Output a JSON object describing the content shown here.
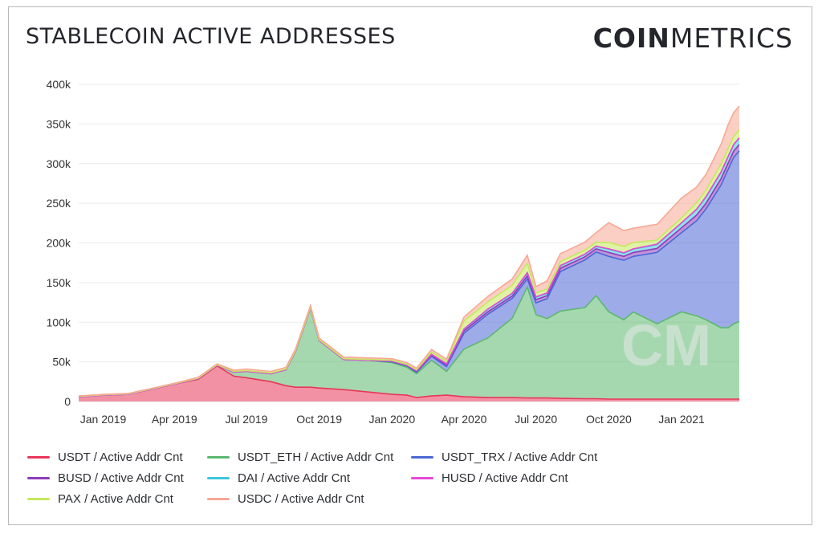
{
  "header": {
    "title": "STABLECOIN ACTIVE ADDRESSES",
    "logo_bold": "COIN",
    "logo_light": "METRICS"
  },
  "chart_data": {
    "type": "area",
    "stacked": true,
    "title": "STABLECOIN ACTIVE ADDRESSES",
    "xlabel": "",
    "ylabel": "",
    "ylim": [
      0,
      400000
    ],
    "yticks": [
      0,
      50000,
      100000,
      150000,
      200000,
      250000,
      300000,
      350000,
      400000
    ],
    "ytick_labels": [
      "0",
      "50k",
      "100k",
      "150k",
      "200k",
      "250k",
      "300k",
      "350k",
      "400k"
    ],
    "xticks": [
      "2019-01-01",
      "2019-04-01",
      "2019-07-01",
      "2019-10-01",
      "2020-01-01",
      "2020-04-01",
      "2020-07-01",
      "2020-10-01",
      "2021-01-01"
    ],
    "xtick_labels": [
      "Jan 2019",
      "Apr 2019",
      "Jul 2019",
      "Oct 2019",
      "Jan 2020",
      "Apr 2020",
      "Jul 2020",
      "Oct 2020",
      "Jan 2021"
    ],
    "xlim": [
      "2018-12-01",
      "2021-03-15"
    ],
    "grid": true,
    "legend_position": "bottom",
    "x": [
      "2018-12-01",
      "2019-01-01",
      "2019-02-01",
      "2019-03-01",
      "2019-04-01",
      "2019-05-01",
      "2019-05-25",
      "2019-06-15",
      "2019-07-01",
      "2019-08-01",
      "2019-08-20",
      "2019-09-01",
      "2019-09-20",
      "2019-10-01",
      "2019-11-01",
      "2019-12-01",
      "2020-01-01",
      "2020-01-20",
      "2020-02-01",
      "2020-02-20",
      "2020-03-10",
      "2020-04-01",
      "2020-05-01",
      "2020-06-01",
      "2020-06-20",
      "2020-07-01",
      "2020-07-15",
      "2020-08-01",
      "2020-09-01",
      "2020-09-15",
      "2020-10-01",
      "2020-10-20",
      "2020-11-01",
      "2020-12-01",
      "2021-01-01",
      "2021-01-20",
      "2021-02-01",
      "2021-02-20",
      "2021-03-01",
      "2021-03-08",
      "2021-03-15"
    ],
    "series": [
      {
        "name": "USDT / Active Addr Cnt",
        "color": "#e8365a",
        "values": [
          6000,
          8000,
          9000,
          15000,
          22000,
          28000,
          45000,
          32000,
          30000,
          25000,
          20000,
          18000,
          18000,
          17000,
          15000,
          12000,
          9000,
          8000,
          5000,
          7000,
          8000,
          6000,
          5000,
          5000,
          4500,
          4500,
          4500,
          4000,
          3500,
          3500,
          3000,
          3000,
          3000,
          3000,
          3000,
          3000,
          3000,
          3000,
          3000,
          3000,
          3000
        ]
      },
      {
        "name": "USDT_ETH / Active Addr Cnt",
        "color": "#5cb86e",
        "values": [
          0,
          0,
          0,
          0,
          0,
          1000,
          1000,
          5000,
          8000,
          10000,
          20000,
          45000,
          100000,
          60000,
          38000,
          40000,
          40000,
          35000,
          30000,
          45000,
          30000,
          60000,
          75000,
          100000,
          140000,
          105000,
          100000,
          110000,
          115000,
          130000,
          110000,
          100000,
          110000,
          95000,
          110000,
          105000,
          100000,
          90000,
          90000,
          95000,
          98000
        ]
      },
      {
        "name": "USDT_TRX / Active Addr Cnt",
        "color": "#4c68d6",
        "values": [
          0,
          0,
          0,
          0,
          0,
          0,
          0,
          0,
          0,
          0,
          0,
          0,
          0,
          0,
          0,
          0,
          1000,
          2000,
          2000,
          5000,
          6000,
          20000,
          30000,
          25000,
          10000,
          15000,
          25000,
          50000,
          60000,
          55000,
          70000,
          75000,
          70000,
          90000,
          100000,
          120000,
          140000,
          180000,
          200000,
          210000,
          215000
        ]
      },
      {
        "name": "BUSD / Active Addr Cnt",
        "color": "#8e3aba",
        "values": [
          0,
          0,
          0,
          0,
          0,
          0,
          0,
          0,
          0,
          0,
          0,
          0,
          0,
          0,
          0,
          0,
          500,
          500,
          1000,
          1500,
          2000,
          3000,
          3000,
          3000,
          4000,
          4000,
          4000,
          4000,
          4000,
          4000,
          5000,
          5000,
          5000,
          5000,
          6000,
          7000,
          7000,
          8000,
          8000,
          8000,
          8000
        ]
      },
      {
        "name": "DAI / Active Addr Cnt",
        "color": "#3cc7dc",
        "values": [
          0,
          0,
          0,
          0,
          0,
          0,
          0,
          0,
          0,
          0,
          0,
          0,
          0,
          0,
          0,
          0,
          500,
          500,
          1000,
          1000,
          1500,
          2000,
          3000,
          3000,
          3500,
          3000,
          3000,
          3000,
          3000,
          3000,
          4000,
          4000,
          4000,
          5000,
          6000,
          7000,
          8000,
          8000,
          8000,
          8000,
          8000
        ]
      },
      {
        "name": "HUSD / Active Addr Cnt",
        "color": "#e54ad6",
        "values": [
          0,
          0,
          0,
          0,
          0,
          0,
          0,
          0,
          0,
          0,
          0,
          0,
          0,
          0,
          0,
          0,
          0,
          0,
          0,
          0,
          0,
          500,
          500,
          500,
          500,
          500,
          500,
          500,
          500,
          500,
          500,
          500,
          500,
          500,
          500,
          500,
          500,
          500,
          500,
          500,
          500
        ]
      },
      {
        "name": "PAX / Active Addr Cnt",
        "color": "#c6e85d",
        "values": [
          500,
          500,
          500,
          500,
          500,
          500,
          500,
          1000,
          1000,
          1000,
          1000,
          1000,
          1000,
          1000,
          1000,
          1000,
          1000,
          1000,
          1000,
          3000,
          3000,
          10000,
          9000,
          10000,
          12000,
          5000,
          5000,
          5000,
          5000,
          5000,
          8000,
          8000,
          8000,
          5000,
          6000,
          8000,
          8000,
          10000,
          10000,
          10000,
          10000
        ]
      },
      {
        "name": "USDC / Active Addr Cnt",
        "color": "#f7a893",
        "values": [
          500,
          500,
          500,
          500,
          500,
          1000,
          1000,
          1500,
          2000,
          2000,
          2000,
          2000,
          2000,
          2000,
          2000,
          2000,
          2000,
          2000,
          2000,
          3000,
          3000,
          5000,
          7000,
          8000,
          10000,
          8000,
          10000,
          10000,
          10000,
          12000,
          25000,
          20000,
          18000,
          20000,
          25000,
          20000,
          20000,
          25000,
          30000,
          30000,
          30000
        ]
      }
    ]
  },
  "watermark": "CM"
}
